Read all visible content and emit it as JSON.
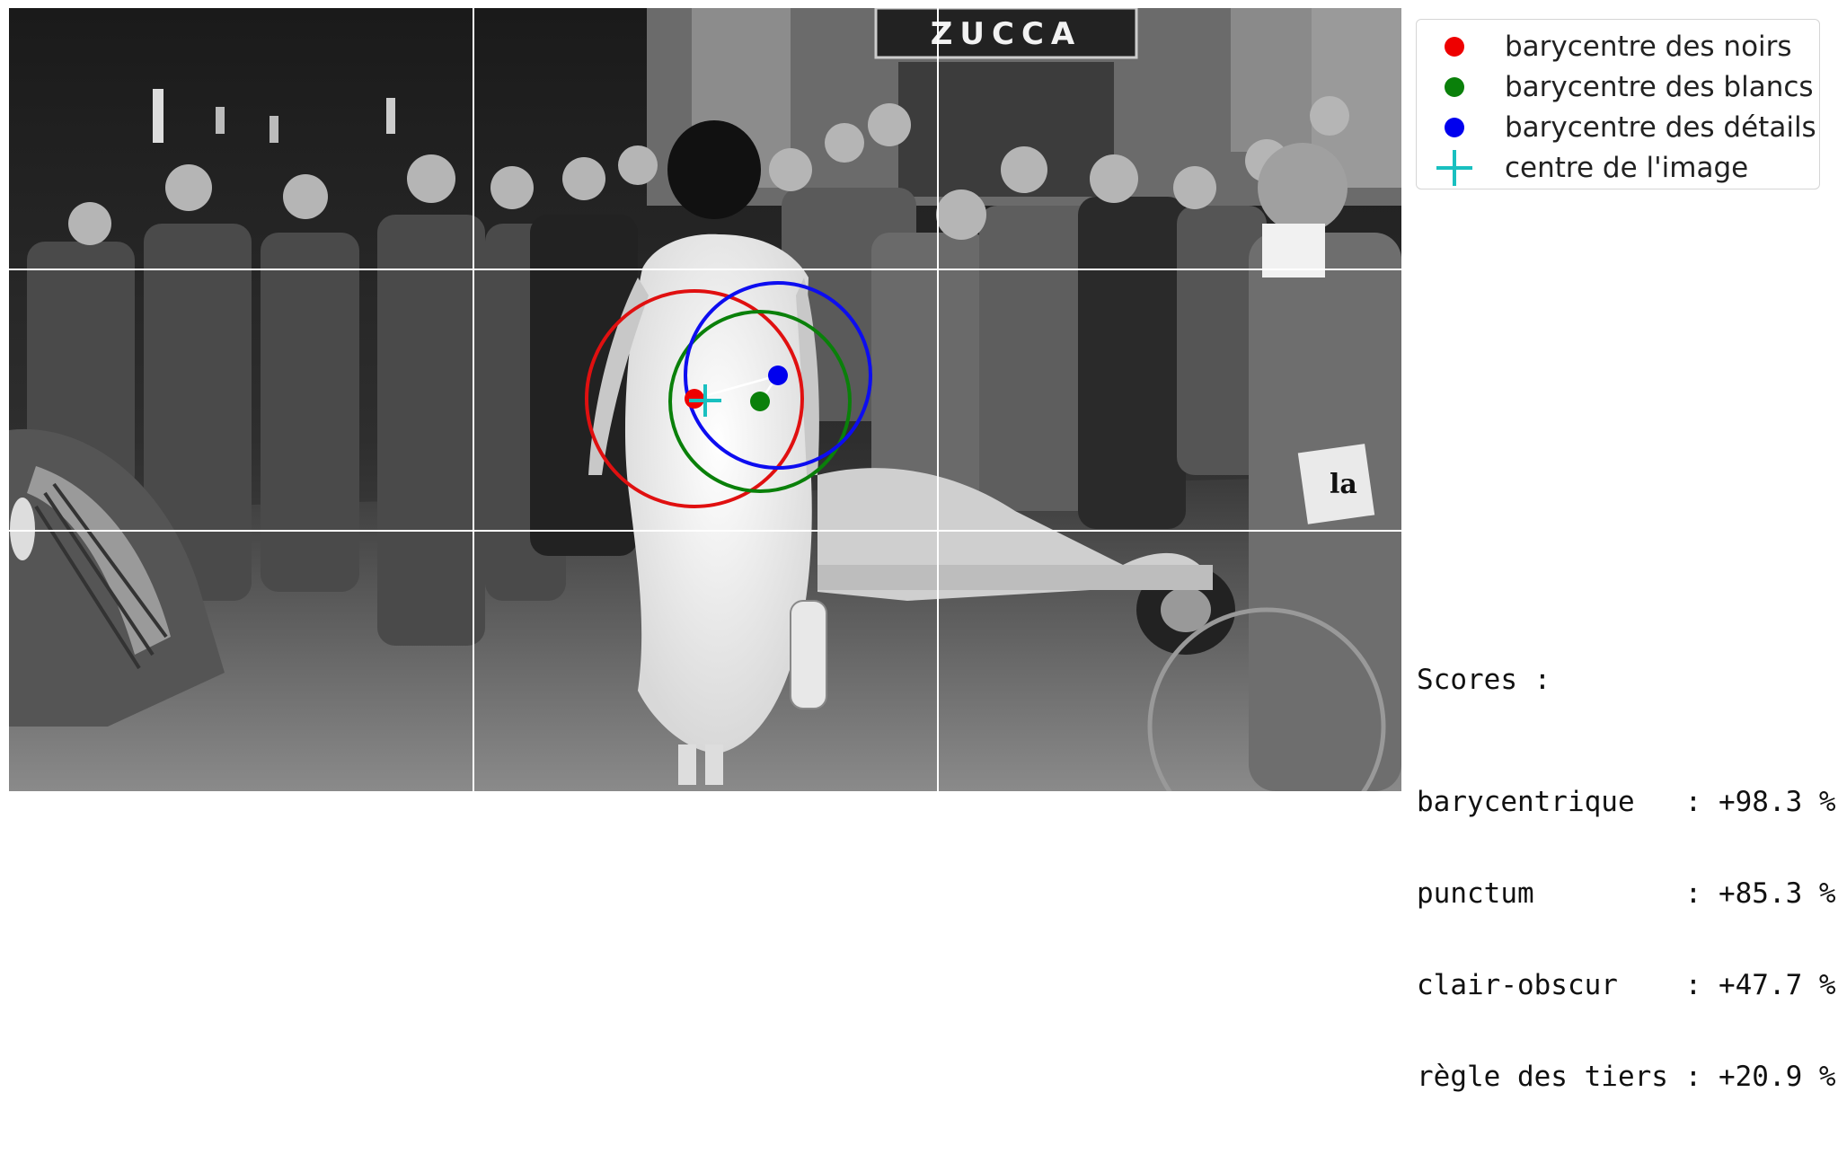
{
  "photo": {
    "description_icon": "street-photo",
    "sign_text": "ZUCCA",
    "newspaper_text": "la",
    "grid": "rule-of-thirds"
  },
  "overlay": {
    "colors": {
      "noirs": "#e01010",
      "blancs": "#0a800a",
      "details": "#0d0df0",
      "center": "#19c0c0",
      "grid": "#ffffff"
    }
  },
  "legend": {
    "items": [
      {
        "label": "barycentre des noirs",
        "color": "#ee0000",
        "marker": "dot-icon"
      },
      {
        "label": "barycentre des blancs",
        "color": "#0a800a",
        "marker": "dot-icon"
      },
      {
        "label": "barycentre des détails",
        "color": "#0000ee",
        "marker": "dot-icon"
      },
      {
        "label": "centre de l'image",
        "color": "#19c0c0",
        "marker": "plus-icon"
      }
    ]
  },
  "scores": {
    "title": "Scores :",
    "rows": [
      {
        "text": "barycentrique   : +98.3 %"
      },
      {
        "text": "punctum         : +85.3 %"
      },
      {
        "text": "clair-obscur    : +47.7 %"
      },
      {
        "text": "règle des tiers : +20.9 %"
      }
    ]
  }
}
